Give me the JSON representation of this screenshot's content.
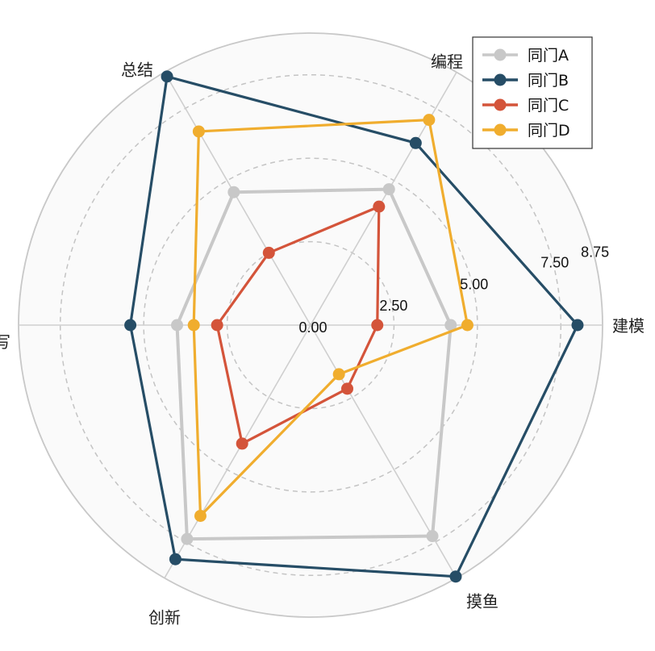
{
  "chart_data": {
    "type": "radar",
    "axes": [
      "建模",
      "编程",
      "总结",
      "撰写",
      "创新",
      "摸鱼"
    ],
    "r_ticks": [
      0,
      2.5,
      5.0,
      7.5,
      8.75
    ],
    "r_tick_labels": [
      "0.00",
      "2.50",
      "5.00",
      "7.50",
      "8.75"
    ],
    "r_max": 8.75,
    "grid": true,
    "legend_position": "top-right",
    "series": [
      {
        "name": "同门A",
        "color": "#c8c8c8",
        "values": [
          4.2,
          4.7,
          4.6,
          4.0,
          7.4,
          7.3
        ]
      },
      {
        "name": "同门B",
        "color": "#264d66",
        "values": [
          8.0,
          6.3,
          8.6,
          5.4,
          8.1,
          8.7
        ]
      },
      {
        "name": "同门C",
        "color": "#d4543a",
        "values": [
          2.0,
          4.1,
          2.5,
          2.8,
          4.1,
          2.2
        ]
      },
      {
        "name": "同门D",
        "color": "#f0ad2e",
        "values": [
          4.7,
          7.1,
          6.7,
          3.5,
          6.6,
          1.7
        ]
      }
    ]
  }
}
